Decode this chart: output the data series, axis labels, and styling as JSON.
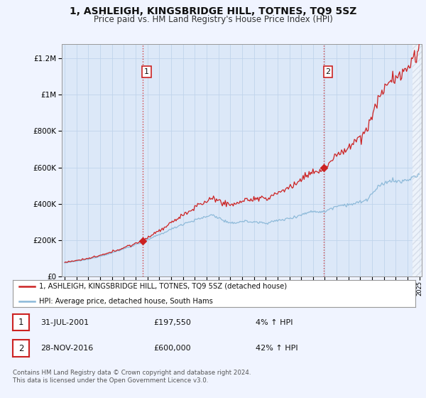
{
  "title": "1, ASHLEIGH, KINGSBRIDGE HILL, TOTNES, TQ9 5SZ",
  "subtitle": "Price paid vs. HM Land Registry's House Price Index (HPI)",
  "title_fontsize": 10,
  "subtitle_fontsize": 8.5,
  "background_color": "#f0f4ff",
  "plot_background": "#dce8f8",
  "grid_color": "#c0d4ec",
  "hpi_color": "#8ab8d8",
  "price_color": "#cc2222",
  "dashed_color": "#cc2222",
  "yticks": [
    0,
    200000,
    400000,
    600000,
    800000,
    1000000,
    1200000
  ],
  "sale1_x": 2001.58,
  "sale1_price": 197550,
  "sale2_x": 2016.91,
  "sale2_price": 600000,
  "legend_price_label": "1, ASHLEIGH, KINGSBRIDGE HILL, TOTNES, TQ9 5SZ (detached house)",
  "legend_hpi_label": "HPI: Average price, detached house, South Hams",
  "footnote": "Contains HM Land Registry data © Crown copyright and database right 2024.\nThis data is licensed under the Open Government Licence v3.0.",
  "table_rows": [
    {
      "label": "1",
      "date": "31-JUL-2001",
      "price": "£197,550",
      "pct": "4% ↑ HPI"
    },
    {
      "label": "2",
      "date": "28-NOV-2016",
      "price": "£600,000",
      "pct": "42% ↑ HPI"
    }
  ]
}
